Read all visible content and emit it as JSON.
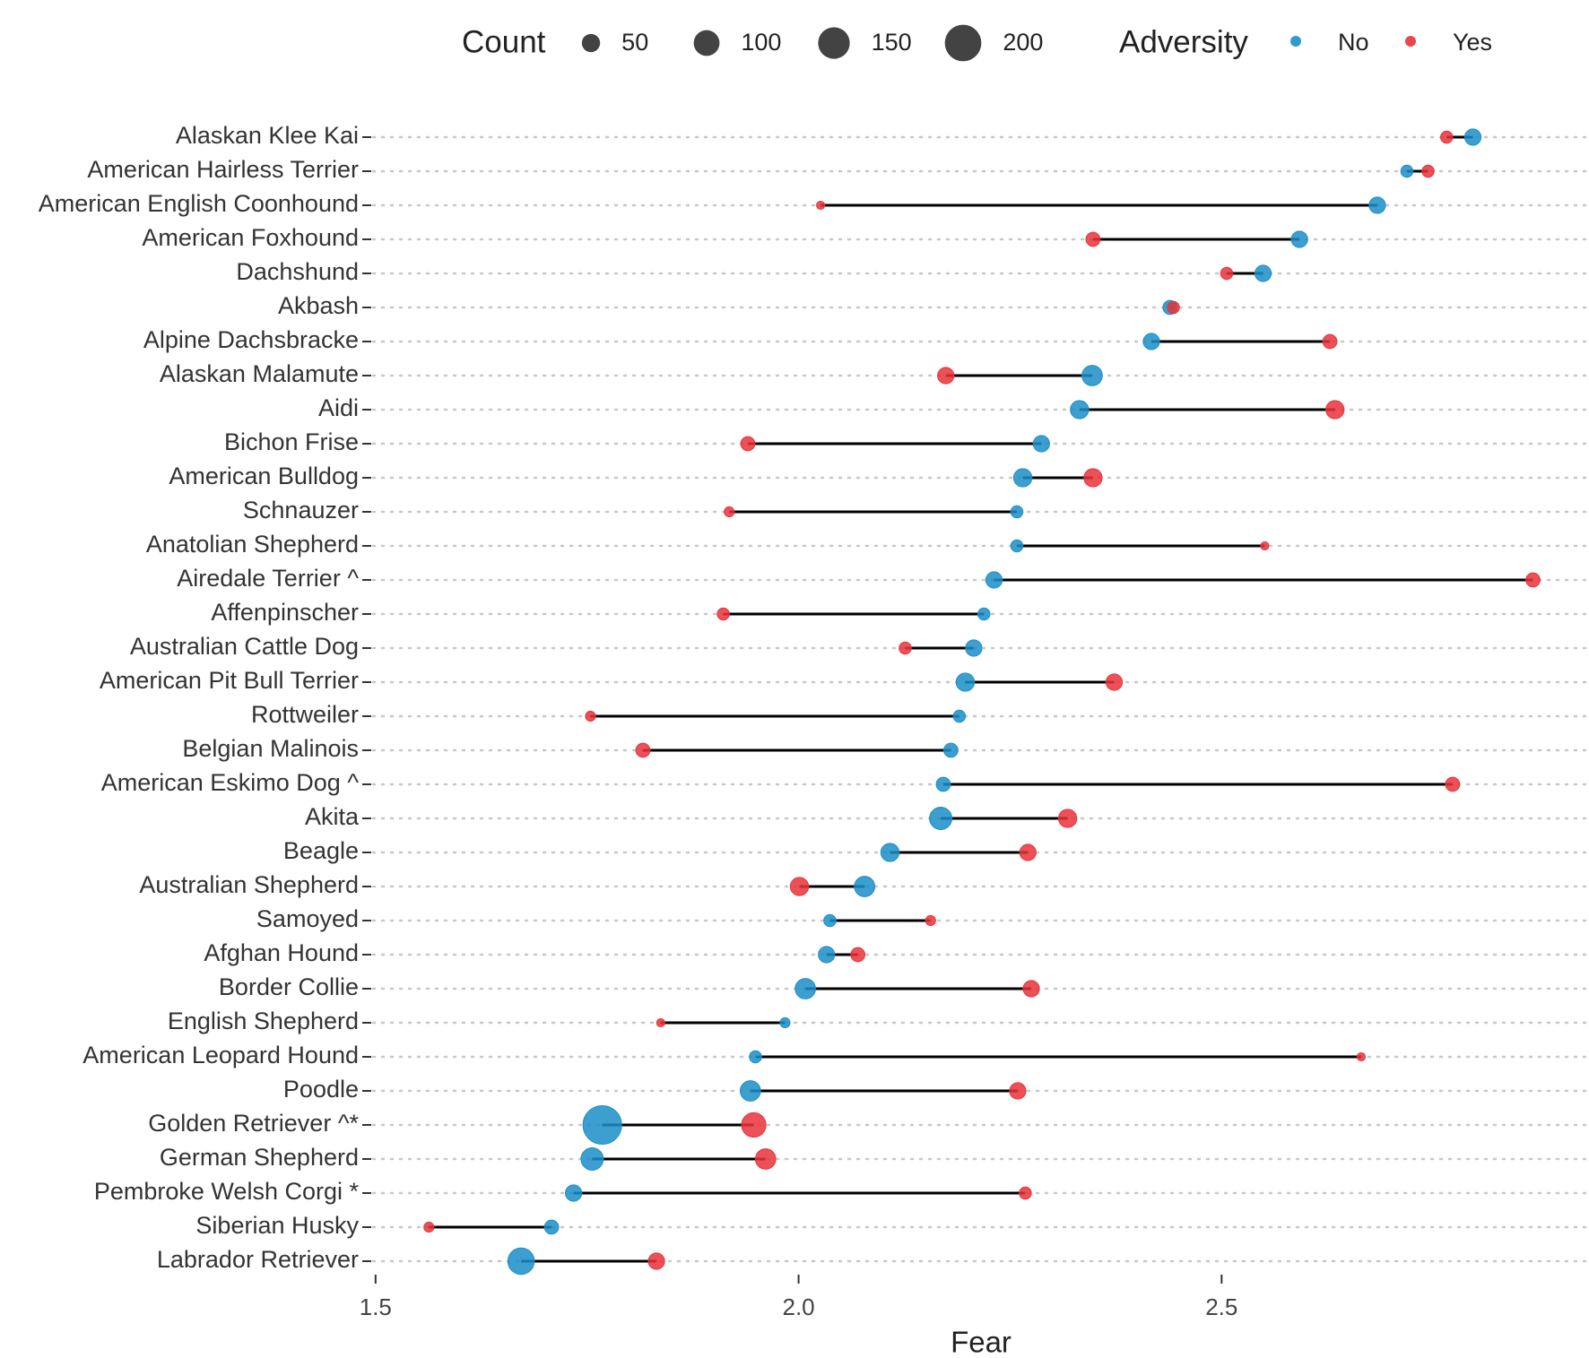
{
  "chart_data": {
    "type": "dumbbell",
    "xlabel": "Fear",
    "xlim": [
      1.497,
      2.93
    ],
    "xticks": [
      1.5,
      {
        "value": 2,
        "label": "2.0"
      },
      2.5
    ],
    "categories": [
      "Alaskan Klee Kai",
      "American Hairless Terrier",
      "American English Coonhound",
      "American Foxhound",
      "Dachshund",
      "Akbash",
      "Alpine Dachsbracke",
      "Alaskan Malamute",
      "Aidi",
      "Bichon Frise",
      "American Bulldog",
      "Schnauzer",
      "Anatolian Shepherd",
      "Airedale Terrier ^",
      "Affenpinscher",
      "Australian Cattle Dog",
      "American Pit Bull Terrier",
      "Rottweiler",
      "Belgian Malinois",
      "American Eskimo Dog ^",
      "Akita",
      "Beagle",
      "Australian Shepherd",
      "Samoyed",
      "Afghan Hound",
      "Border Collie",
      "English Shepherd",
      "American Leopard Hound",
      "Poodle",
      "Golden  Retriever ^*",
      "German Shepherd",
      "Pembroke Welsh Corgi *",
      "Siberian Husky",
      "Labrador Retriever"
    ],
    "legend_title": "Adversity",
    "series": [
      {
        "name": "No",
        "color": "#1b8ec7",
        "values": [
          2.797,
          2.719,
          2.684,
          2.592,
          2.549,
          2.439,
          2.417,
          2.347,
          2.332,
          2.287,
          2.265,
          2.258,
          2.258,
          2.231,
          2.219,
          2.207,
          2.197,
          2.19,
          2.18,
          2.171,
          2.168,
          2.108,
          2.078,
          2.037,
          2.033,
          2.008,
          1.984,
          1.949,
          1.943,
          1.768,
          1.756,
          1.734,
          1.708,
          1.672
        ],
        "sizes": [
          40,
          22,
          40,
          40,
          40,
          30,
          40,
          62,
          50,
          40,
          50,
          22,
          22,
          40,
          22,
          40,
          50,
          22,
          30,
          30,
          75,
          50,
          62,
          22,
          40,
          62,
          15,
          22,
          62,
          224,
          75,
          40,
          30,
          105
        ]
      },
      {
        "name": "Yes",
        "color": "#e8323a",
        "values": [
          2.766,
          2.744,
          2.026,
          2.348,
          2.506,
          2.443,
          2.628,
          2.174,
          2.634,
          1.94,
          2.348,
          1.918,
          2.551,
          2.868,
          1.911,
          2.126,
          2.373,
          1.754,
          1.816,
          2.773,
          2.318,
          2.271,
          2.001,
          2.156,
          2.07,
          2.275,
          1.837,
          2.665,
          2.259,
          1.947,
          1.961,
          2.268,
          1.563,
          1.832
        ],
        "sizes": [
          22,
          22,
          10,
          30,
          22,
          22,
          30,
          40,
          50,
          30,
          50,
          15,
          10,
          30,
          22,
          22,
          40,
          15,
          30,
          30,
          50,
          40,
          50,
          15,
          30,
          40,
          10,
          10,
          40,
          89,
          62,
          22,
          15,
          40
        ]
      }
    ],
    "size_legend": {
      "title": "Count",
      "values": [
        50,
        100,
        150,
        200
      ]
    }
  }
}
